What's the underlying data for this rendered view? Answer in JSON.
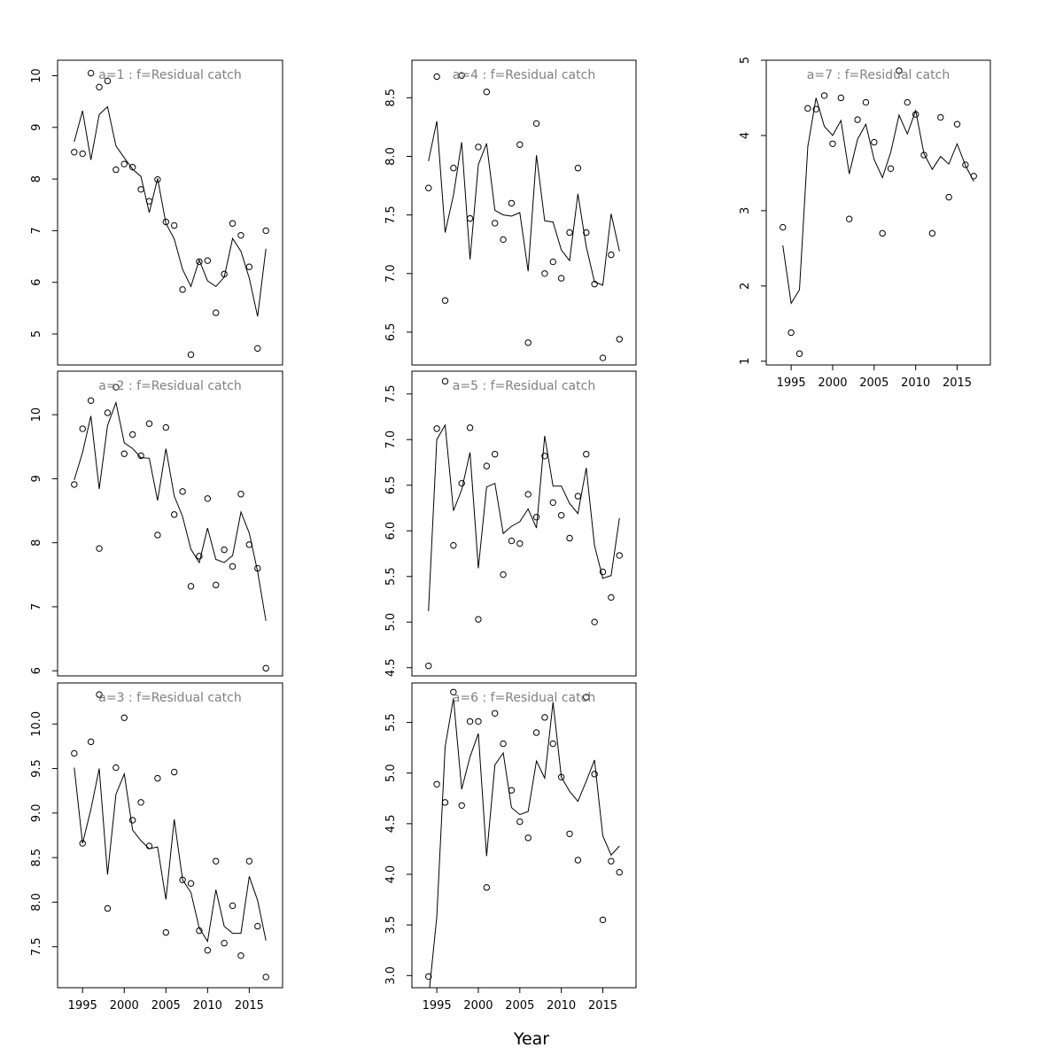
{
  "chart_data": {
    "type": "scatter",
    "xlabel": "Year",
    "panels": [
      {
        "title": "a=1  :  f=Residual catch",
        "yticks": [
          5,
          6,
          7,
          8,
          9,
          10
        ],
        "ylim": [
          4.4,
          10.3
        ],
        "xlim": [
          1992,
          2019
        ],
        "years": [
          1994,
          1995,
          1996,
          1997,
          1998,
          1999,
          2000,
          2001,
          2002,
          2003,
          2004,
          2005,
          2006,
          2007,
          2008,
          2009,
          2010,
          2011,
          2012,
          2013,
          2014,
          2015,
          2016,
          2017
        ],
        "observed": [
          8.52,
          8.49,
          10.05,
          9.78,
          9.9,
          8.18,
          8.29,
          8.23,
          7.8,
          7.57,
          7.99,
          7.17,
          7.1,
          5.86,
          4.6,
          6.4,
          6.42,
          5.41,
          6.16,
          7.14,
          6.91,
          6.3,
          4.72,
          7.0
        ],
        "fitted": [
          8.72,
          9.32,
          8.37,
          9.25,
          9.4,
          8.64,
          8.41,
          8.19,
          8.05,
          7.35,
          8.01,
          7.14,
          6.84,
          6.25,
          5.92,
          6.43,
          6.03,
          5.92,
          6.1,
          6.85,
          6.6,
          6.08,
          5.34,
          6.65
        ]
      },
      {
        "title": "a=2  :  f=Residual catch",
        "yticks": [
          6,
          7,
          8,
          9,
          10
        ],
        "ylim": [
          5.92,
          10.68
        ],
        "xlim": [
          1992,
          2019
        ],
        "years": [
          1994,
          1995,
          1996,
          1997,
          1998,
          1999,
          2000,
          2001,
          2002,
          2003,
          2004,
          2005,
          2006,
          2007,
          2008,
          2009,
          2010,
          2011,
          2012,
          2013,
          2014,
          2015,
          2016,
          2017
        ],
        "observed": [
          8.91,
          9.78,
          10.22,
          7.91,
          10.03,
          10.43,
          9.39,
          9.69,
          9.36,
          9.86,
          8.12,
          9.8,
          8.44,
          8.8,
          7.32,
          7.79,
          8.69,
          7.34,
          7.89,
          7.63,
          8.76,
          7.97,
          7.6,
          6.04
        ],
        "fitted": [
          8.98,
          9.41,
          9.98,
          8.84,
          9.83,
          10.19,
          9.56,
          9.47,
          9.33,
          9.32,
          8.66,
          9.47,
          8.73,
          8.41,
          7.9,
          7.69,
          8.23,
          7.74,
          7.69,
          7.8,
          8.48,
          8.15,
          7.55,
          6.78
        ]
      },
      {
        "title": "a=3  :  f=Residual catch",
        "yticks": [
          7.5,
          8.0,
          8.5,
          9.0,
          9.5,
          10.0
        ],
        "ylim": [
          7.04,
          10.46
        ],
        "xlim": [
          1992,
          2019
        ],
        "years": [
          1994,
          1995,
          1996,
          1997,
          1998,
          1999,
          2000,
          2001,
          2002,
          2003,
          2004,
          2005,
          2006,
          2007,
          2008,
          2009,
          2010,
          2011,
          2012,
          2013,
          2014,
          2015,
          2016,
          2017
        ],
        "observed": [
          9.67,
          8.66,
          9.8,
          10.33,
          7.93,
          9.51,
          10.07,
          8.92,
          9.12,
          8.63,
          9.39,
          7.66,
          9.46,
          8.25,
          8.21,
          7.68,
          7.46,
          8.46,
          7.54,
          7.96,
          7.4,
          8.46,
          7.73,
          7.16
        ],
        "fitted": [
          9.51,
          8.66,
          9.04,
          9.5,
          8.31,
          9.21,
          9.44,
          8.81,
          8.69,
          8.6,
          8.62,
          8.03,
          8.93,
          8.25,
          8.11,
          7.71,
          7.56,
          8.14,
          7.73,
          7.65,
          7.65,
          8.29,
          8.02,
          7.57
        ]
      },
      {
        "title": "a=4  :  f=Residual catch",
        "yticks": [
          6.5,
          7.0,
          7.5,
          8.0,
          8.5
        ],
        "ylim": [
          6.22,
          8.82
        ],
        "xlim": [
          1992,
          2019
        ],
        "years": [
          1994,
          1995,
          1996,
          1997,
          1998,
          1999,
          2000,
          2001,
          2002,
          2003,
          2004,
          2005,
          2006,
          2007,
          2008,
          2009,
          2010,
          2011,
          2012,
          2013,
          2014,
          2015,
          2016,
          2017
        ],
        "observed": [
          7.73,
          8.68,
          6.77,
          7.9,
          8.69,
          7.47,
          8.08,
          8.55,
          7.43,
          7.29,
          7.6,
          8.1,
          6.41,
          8.28,
          7.0,
          7.1,
          6.96,
          7.35,
          7.9,
          7.35,
          6.91,
          6.28,
          7.16,
          6.44
        ],
        "fitted": [
          7.96,
          8.3,
          7.35,
          7.67,
          8.12,
          7.12,
          7.93,
          8.11,
          7.54,
          7.5,
          7.49,
          7.52,
          7.02,
          8.01,
          7.45,
          7.44,
          7.2,
          7.11,
          7.68,
          7.23,
          6.93,
          6.9,
          7.51,
          7.19
        ]
      },
      {
        "title": "a=5  :  f=Residual catch",
        "yticks": [
          4.5,
          5.0,
          5.5,
          6.0,
          6.5,
          7.0,
          7.5
        ],
        "ylim": [
          4.41,
          7.75
        ],
        "xlim": [
          1992,
          2019
        ],
        "years": [
          1994,
          1995,
          1996,
          1997,
          1998,
          1999,
          2000,
          2001,
          2002,
          2003,
          2004,
          2005,
          2006,
          2007,
          2008,
          2009,
          2010,
          2011,
          2012,
          2013,
          2014,
          2015,
          2016,
          2017
        ],
        "observed": [
          4.52,
          7.12,
          7.64,
          5.84,
          6.52,
          7.13,
          5.03,
          6.71,
          6.84,
          5.52,
          5.89,
          5.86,
          6.4,
          6.15,
          6.82,
          6.31,
          6.17,
          5.92,
          6.38,
          6.84,
          5.0,
          5.55,
          5.27,
          5.73
        ],
        "fitted": [
          5.12,
          7.0,
          7.16,
          6.22,
          6.45,
          6.86,
          5.59,
          6.48,
          6.52,
          5.97,
          6.05,
          6.1,
          6.24,
          6.03,
          7.04,
          6.49,
          6.49,
          6.3,
          6.19,
          6.69,
          5.84,
          5.48,
          5.51,
          6.14
        ]
      },
      {
        "title": "a=6  :  f=Residual catch",
        "yticks": [
          3.0,
          3.5,
          4.0,
          4.5,
          5.0,
          5.5
        ],
        "ylim": [
          2.88,
          5.89
        ],
        "xlim": [
          1992,
          2019
        ],
        "years": [
          1994,
          1995,
          1996,
          1997,
          1998,
          1999,
          2000,
          2001,
          2002,
          2003,
          2004,
          2005,
          2006,
          2007,
          2008,
          2009,
          2010,
          2011,
          2012,
          2013,
          2014,
          2015,
          2016,
          2017
        ],
        "observed": [
          2.99,
          4.89,
          4.71,
          5.8,
          4.68,
          5.51,
          5.51,
          3.87,
          5.59,
          5.29,
          4.83,
          4.52,
          4.36,
          5.4,
          5.55,
          5.29,
          4.96,
          4.4,
          4.14,
          5.75,
          4.99,
          3.55,
          4.13,
          4.02
        ],
        "fitted": [
          2.77,
          3.58,
          5.26,
          5.74,
          4.84,
          5.16,
          5.39,
          4.18,
          5.08,
          5.2,
          4.66,
          4.59,
          4.62,
          5.12,
          4.95,
          5.7,
          4.96,
          4.82,
          4.72,
          4.92,
          5.13,
          4.38,
          4.19,
          4.28
        ]
      },
      {
        "title": "a=7  :  f=Residual catch",
        "yticks": [
          1,
          2,
          3,
          4,
          5
        ],
        "ylim": [
          0.95,
          5.0
        ],
        "xlim": [
          1992,
          2019
        ],
        "years": [
          1994,
          1995,
          1996,
          1997,
          1998,
          1999,
          2000,
          2001,
          2002,
          2003,
          2004,
          2005,
          2006,
          2007,
          2008,
          2009,
          2010,
          2011,
          2012,
          2013,
          2014,
          2015,
          2016,
          2017
        ],
        "observed": [
          2.78,
          1.38,
          1.1,
          4.36,
          4.35,
          4.53,
          3.89,
          4.5,
          2.89,
          4.21,
          4.44,
          3.91,
          2.7,
          3.56,
          4.86,
          4.44,
          4.28,
          3.74,
          2.7,
          4.24,
          3.18,
          4.15,
          3.61,
          3.46
        ],
        "fitted": [
          2.54,
          1.77,
          1.95,
          3.85,
          4.5,
          4.12,
          4.0,
          4.2,
          3.49,
          3.95,
          4.15,
          3.68,
          3.44,
          3.78,
          4.27,
          4.02,
          4.33,
          3.76,
          3.55,
          3.72,
          3.62,
          3.89,
          3.6,
          3.39
        ]
      }
    ],
    "xticks": [
      1995,
      2000,
      2005,
      2010,
      2015
    ]
  }
}
